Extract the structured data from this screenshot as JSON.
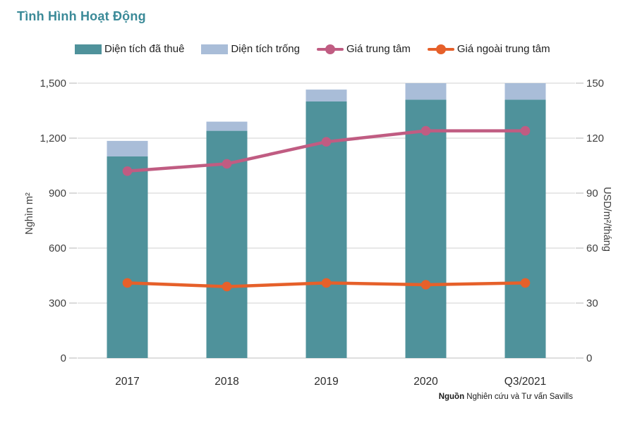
{
  "page": {
    "title": "Tình Hình Hoạt Động",
    "source_label": "Nguồn",
    "source_text": " Nghiên cứu và Tư vấn Savills"
  },
  "colors": {
    "title": "#3b8a98",
    "leased": "#4f929b",
    "vacant": "#a9bdd8",
    "central": "#c05c82",
    "non_central": "#e6602a",
    "grid": "#e8e8e8",
    "baseline": "#dedede",
    "tick": "#cdcdcd",
    "axis_text": "#3f3f3f"
  },
  "legend": [
    {
      "label": "Diện tích đã thuê",
      "type": "swatch",
      "color_key": "leased"
    },
    {
      "label": "Diện tích trống",
      "type": "swatch",
      "color_key": "vacant"
    },
    {
      "label": "Giá trung tâm",
      "type": "line",
      "color_key": "central"
    },
    {
      "label": "Giá ngoài trung tâm",
      "type": "line",
      "color_key": "non_central"
    }
  ],
  "chart_data": {
    "type": "bar",
    "subtype": "stacked-bar-with-lines",
    "title": "Tình Hình Hoạt Động",
    "categories": [
      "2017",
      "2018",
      "2019",
      "2020",
      "Q3/2021"
    ],
    "series": [
      {
        "name": "Diện tích đã thuê",
        "kind": "bar",
        "axis": "left",
        "color_key": "leased",
        "values": [
          1100,
          1240,
          1400,
          1410,
          1410
        ]
      },
      {
        "name": "Diện tích trống",
        "kind": "bar",
        "axis": "left",
        "color_key": "vacant",
        "values": [
          85,
          50,
          65,
          90,
          90
        ]
      },
      {
        "name": "Giá trung tâm",
        "kind": "line",
        "axis": "right",
        "color_key": "central",
        "values": [
          102,
          106,
          118,
          124,
          124
        ]
      },
      {
        "name": "Giá ngoài trung tâm",
        "kind": "line",
        "axis": "right",
        "color_key": "non_central",
        "values": [
          41,
          39,
          41,
          40,
          41
        ]
      }
    ],
    "left_axis": {
      "label": "Nghìn m²",
      "min": 0,
      "max": 1500,
      "ticks": [
        0,
        300,
        600,
        900,
        1200,
        1500
      ],
      "tick_labels": [
        "0",
        "300",
        "600",
        "900",
        "1,200",
        "1,500"
      ]
    },
    "right_axis": {
      "label": "USD/m²/tháng",
      "min": 0,
      "max": 150,
      "ticks": [
        0,
        30,
        60,
        90,
        120,
        150
      ],
      "tick_labels": [
        "0",
        "30",
        "60",
        "90",
        "120",
        "150"
      ]
    },
    "grid": true,
    "legend_position": "top"
  }
}
